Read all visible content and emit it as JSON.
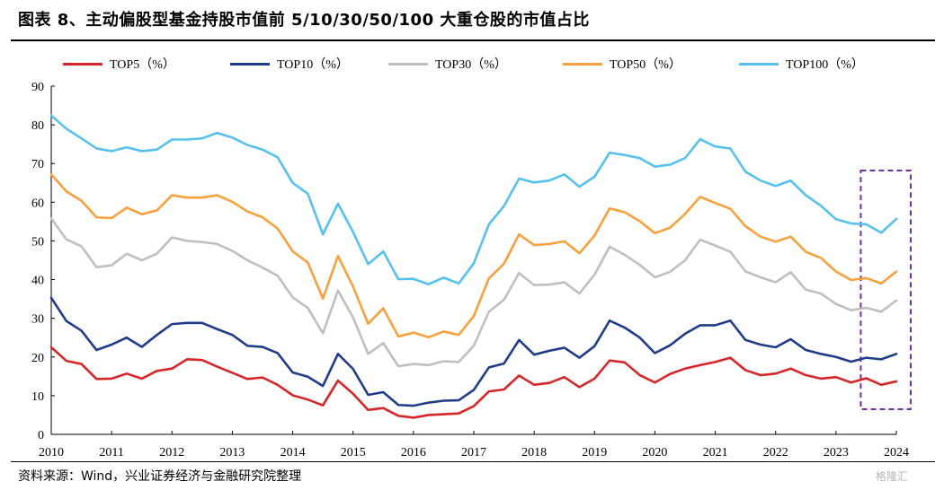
{
  "title": "图表 8、主动偏股型基金持股市值前 5/10/30/50/100 大重仓股的市值占比",
  "source": "资料来源：Wind，兴业证券经济与金融研究院整理",
  "watermark": "格隆汇",
  "chart_data": {
    "type": "line",
    "xlabel": "",
    "ylabel": "",
    "ylim": [
      0,
      90
    ],
    "yticks": [
      0,
      10,
      20,
      30,
      40,
      50,
      60,
      70,
      80,
      90
    ],
    "xticks": [
      "2010",
      "2011",
      "2012",
      "2013",
      "2014",
      "2015",
      "2016",
      "2017",
      "2018",
      "2019",
      "2020",
      "2021",
      "2022",
      "2023",
      "2024"
    ],
    "xrange": [
      2010.0,
      2024.0
    ],
    "grid": false,
    "legend_position": "top",
    "highlight_box": {
      "x_from": "2023Q3",
      "x_to": "2024Q1",
      "color": "#7030a0",
      "style": "dashed"
    },
    "x": [
      "2010Q1",
      "2010Q2",
      "2010Q3",
      "2010Q4",
      "2011Q1",
      "2011Q2",
      "2011Q3",
      "2011Q4",
      "2012Q1",
      "2012Q2",
      "2012Q3",
      "2012Q4",
      "2013Q1",
      "2013Q2",
      "2013Q3",
      "2013Q4",
      "2014Q1",
      "2014Q2",
      "2014Q3",
      "2014Q4",
      "2015Q1",
      "2015Q2",
      "2015Q3",
      "2015Q4",
      "2016Q1",
      "2016Q2",
      "2016Q3",
      "2016Q4",
      "2017Q1",
      "2017Q2",
      "2017Q3",
      "2017Q4",
      "2018Q1",
      "2018Q2",
      "2018Q3",
      "2018Q4",
      "2019Q1",
      "2019Q2",
      "2019Q3",
      "2019Q4",
      "2020Q1",
      "2020Q2",
      "2020Q3",
      "2020Q4",
      "2021Q1",
      "2021Q2",
      "2021Q3",
      "2021Q4",
      "2022Q1",
      "2022Q2",
      "2022Q3",
      "2022Q4",
      "2023Q1",
      "2023Q2",
      "2023Q3",
      "2023Q4",
      "2024Q1"
    ],
    "series": [
      {
        "name": "TOP5（%）",
        "color": "#d62728",
        "values": [
          22.5,
          19.0,
          18.2,
          14.3,
          14.4,
          15.7,
          14.4,
          16.4,
          17.0,
          19.4,
          19.2,
          17.5,
          15.9,
          14.3,
          14.7,
          12.8,
          10.1,
          9.0,
          7.5,
          13.9,
          10.5,
          6.3,
          6.8,
          4.8,
          4.3,
          5.0,
          5.2,
          5.4,
          7.3,
          11.1,
          11.6,
          15.2,
          12.8,
          13.3,
          14.8,
          12.2,
          14.4,
          19.1,
          18.6,
          15.3,
          13.4,
          15.6,
          17.0,
          17.9,
          18.7,
          19.8,
          16.6,
          15.3,
          15.7,
          17.0,
          15.3,
          14.4,
          14.8,
          13.4,
          14.5,
          12.8,
          13.7
        ]
      },
      {
        "name": "TOP10（%）",
        "color": "#1f3c88",
        "values": [
          35.3,
          29.3,
          26.8,
          21.8,
          23.2,
          25.0,
          22.6,
          25.7,
          28.5,
          28.8,
          28.8,
          27.2,
          25.7,
          22.9,
          22.6,
          21.0,
          16.0,
          14.9,
          12.5,
          20.8,
          16.9,
          10.2,
          10.9,
          7.6,
          7.4,
          8.2,
          8.7,
          8.8,
          11.5,
          17.3,
          18.3,
          24.4,
          20.6,
          21.6,
          22.4,
          19.8,
          22.8,
          29.4,
          27.6,
          25.0,
          21.0,
          23.0,
          26.0,
          28.2,
          28.2,
          29.4,
          24.4,
          23.2,
          22.5,
          24.6,
          21.8,
          20.8,
          20.0,
          18.8,
          19.8,
          19.4,
          20.8
        ]
      },
      {
        "name": "TOP30（%）",
        "color": "#bfbfbf",
        "values": [
          55.8,
          50.4,
          48.6,
          43.2,
          43.7,
          46.7,
          45.0,
          46.7,
          50.9,
          50.0,
          49.7,
          49.2,
          47.4,
          45.0,
          43.1,
          41.0,
          35.4,
          32.7,
          26.1,
          37.2,
          30.2,
          20.8,
          23.6,
          17.6,
          18.2,
          17.9,
          18.9,
          18.7,
          22.9,
          31.7,
          34.8,
          41.7,
          38.6,
          38.7,
          39.3,
          36.4,
          41.3,
          48.5,
          46.4,
          43.8,
          40.6,
          42.0,
          45.0,
          50.3,
          48.8,
          47.2,
          42.1,
          40.6,
          39.3,
          41.9,
          37.4,
          36.4,
          33.7,
          32.1,
          32.7,
          31.7,
          34.6
        ]
      },
      {
        "name": "TOP50（%）",
        "color": "#f7a03c",
        "values": [
          67.2,
          62.8,
          60.4,
          56.1,
          55.9,
          58.6,
          56.9,
          57.9,
          61.8,
          61.2,
          61.2,
          61.8,
          60.1,
          57.6,
          56.1,
          53.2,
          47.3,
          44.4,
          35.1,
          46.1,
          38.2,
          28.6,
          32.6,
          25.3,
          26.3,
          25.1,
          26.6,
          25.7,
          30.6,
          40.3,
          44.1,
          51.7,
          48.9,
          49.2,
          49.9,
          46.8,
          51.4,
          58.4,
          57.4,
          55.1,
          52.0,
          53.4,
          57.0,
          61.4,
          59.8,
          58.3,
          53.8,
          51.1,
          49.8,
          51.1,
          47.2,
          45.6,
          42.1,
          39.9,
          40.4,
          39.0,
          42.1
        ]
      },
      {
        "name": "TOP100（%）",
        "color": "#56c1ec",
        "values": [
          82.4,
          79.0,
          76.5,
          73.9,
          73.2,
          74.2,
          73.2,
          73.6,
          76.2,
          76.2,
          76.5,
          77.9,
          76.7,
          74.8,
          73.6,
          71.6,
          65.0,
          62.2,
          51.7,
          59.6,
          52.3,
          44.0,
          47.3,
          40.1,
          40.2,
          38.8,
          40.5,
          39.0,
          44.2,
          54.3,
          59.0,
          66.1,
          65.1,
          65.6,
          67.2,
          64.0,
          66.6,
          72.8,
          72.2,
          71.4,
          69.2,
          69.7,
          71.4,
          76.3,
          74.4,
          73.9,
          67.9,
          65.6,
          64.2,
          65.6,
          61.8,
          59.1,
          55.6,
          54.5,
          54.3,
          52.1,
          55.7
        ]
      }
    ]
  }
}
